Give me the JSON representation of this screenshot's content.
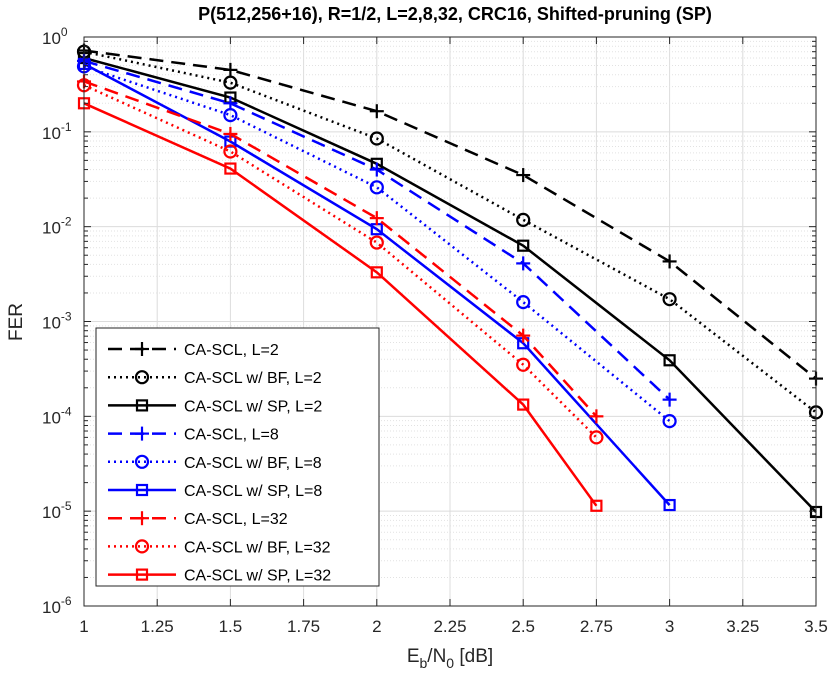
{
  "chart_data": {
    "type": "line",
    "title": "P(512,256+16), R=1/2, L=2,8,32, CRC16, Shifted-pruning (SP)",
    "xlabel": {
      "base": "E",
      "sub1": "b",
      "mid": "/N",
      "sub2": "0",
      "tail": " [dB]"
    },
    "ylabel": "FER",
    "xlim": [
      1,
      3.5
    ],
    "ylim_exponent": [
      -6,
      0
    ],
    "y_scale": "log",
    "xticks": [
      "1",
      "1.25",
      "1.5",
      "1.75",
      "2",
      "2.25",
      "2.5",
      "2.75",
      "3",
      "3.25",
      "3.5"
    ],
    "xtick_values": [
      1,
      1.25,
      1.5,
      1.75,
      2,
      2.25,
      2.5,
      2.75,
      3,
      3.25,
      3.5
    ],
    "yticks": [
      {
        "base": "10",
        "exp": "0",
        "value": 1
      },
      {
        "base": "10",
        "exp": "-1",
        "value": 0.1
      },
      {
        "base": "10",
        "exp": "-2",
        "value": 0.01
      },
      {
        "base": "10",
        "exp": "-3",
        "value": 0.001
      },
      {
        "base": "10",
        "exp": "-4",
        "value": 0.0001
      },
      {
        "base": "10",
        "exp": "-5",
        "value": 1e-05
      },
      {
        "base": "10",
        "exp": "-6",
        "value": 1e-06
      }
    ],
    "grid": true,
    "legend_position": "bottom-left",
    "series": [
      {
        "name": "CA-SCL, L=2",
        "color": "#000000",
        "dash": "dashed",
        "marker": "plus",
        "x": [
          1,
          1.5,
          2,
          2.5,
          3,
          3.5
        ],
        "y": [
          0.72,
          0.45,
          0.165,
          0.035,
          0.0043,
          0.00025
        ]
      },
      {
        "name": "CA-SCL w/ BF, L=2",
        "color": "#000000",
        "dash": "dotted",
        "marker": "circle",
        "x": [
          1,
          1.5,
          2,
          2.5,
          3,
          3.5
        ],
        "y": [
          0.7,
          0.33,
          0.085,
          0.0118,
          0.00172,
          0.00011
        ]
      },
      {
        "name": "CA-SCL w/ SP, L=2",
        "color": "#000000",
        "dash": "solid",
        "marker": "square",
        "x": [
          1,
          1.5,
          2,
          2.5,
          3,
          3.5
        ],
        "y": [
          0.6,
          0.23,
          0.046,
          0.0063,
          0.00039,
          9.8e-06
        ]
      },
      {
        "name": "CA-SCL, L=8",
        "color": "#0000ff",
        "dash": "dashed",
        "marker": "plus",
        "x": [
          1,
          1.5,
          2,
          2.5,
          3
        ],
        "y": [
          0.56,
          0.2,
          0.04,
          0.0041,
          0.00015
        ]
      },
      {
        "name": "CA-SCL w/ BF, L=8",
        "color": "#0000ff",
        "dash": "dotted",
        "marker": "circle",
        "x": [
          1,
          1.5,
          2,
          2.5,
          3
        ],
        "y": [
          0.49,
          0.15,
          0.026,
          0.0016,
          8.9e-05
        ]
      },
      {
        "name": "CA-SCL w/ SP, L=8",
        "color": "#0000ff",
        "dash": "solid",
        "marker": "square",
        "x": [
          1,
          1.5,
          2,
          2.5,
          3
        ],
        "y": [
          0.52,
          0.079,
          0.0094,
          0.00059,
          1.16e-05
        ]
      },
      {
        "name": "CA-SCL, L=32",
        "color": "#ff0000",
        "dash": "dashed",
        "marker": "plus",
        "x": [
          1,
          1.5,
          2,
          2.5,
          2.75
        ],
        "y": [
          0.34,
          0.095,
          0.0123,
          0.00071,
          0.0001
        ]
      },
      {
        "name": "CA-SCL w/ BF, L=32",
        "color": "#ff0000",
        "dash": "dotted",
        "marker": "circle",
        "x": [
          1,
          1.5,
          2,
          2.5,
          2.75
        ],
        "y": [
          0.31,
          0.062,
          0.0068,
          0.00035,
          6e-05
        ]
      },
      {
        "name": "CA-SCL w/ SP, L=32",
        "color": "#ff0000",
        "dash": "solid",
        "marker": "square",
        "x": [
          1,
          1.5,
          2,
          2.5,
          2.75
        ],
        "y": [
          0.2,
          0.041,
          0.0033,
          0.000133,
          1.14e-05
        ]
      }
    ]
  }
}
